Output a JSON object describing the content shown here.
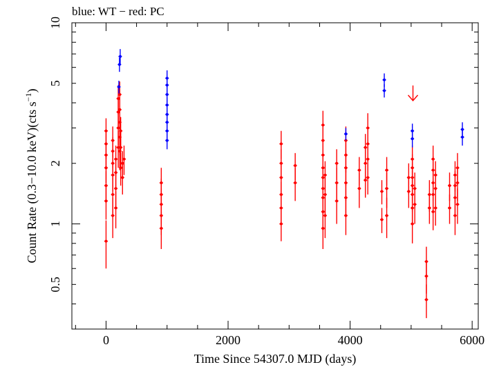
{
  "chart_data": {
    "type": "scatter",
    "title": "blue: WT − red: PC",
    "xlabel": "Time Since 54307.0 MJD (days)",
    "ylabel_main": "Count Rate (0.3−10.0 keV)(cts s",
    "ylabel_sup": "−1",
    "ylabel_close": ")",
    "xlim": [
      -560,
      6100
    ],
    "ylim": [
      0.3,
      10
    ],
    "yscale": "log",
    "grid": false,
    "x_ticks": [
      0,
      2000,
      4000,
      6000
    ],
    "x_tick_labels": [
      "0",
      "2000",
      "4000",
      "6000"
    ],
    "y_ticks": [
      0.5,
      1,
      2,
      5,
      10
    ],
    "y_tick_labels": [
      "0.5",
      "1",
      "2",
      "5",
      "10"
    ],
    "series": [
      {
        "color": "#ff0000",
        "points": [
          [
            0,
            0.82,
            0.22
          ],
          [
            0,
            1.3,
            0.25
          ],
          [
            0,
            1.55,
            0.28
          ],
          [
            0,
            1.9,
            0.3
          ],
          [
            0,
            2.2,
            0.35
          ],
          [
            0,
            2.5,
            0.4
          ],
          [
            0,
            2.9,
            0.45
          ],
          [
            110,
            1.1,
            0.25
          ],
          [
            110,
            1.4,
            0.3
          ],
          [
            110,
            1.75,
            0.3
          ],
          [
            110,
            2.0,
            0.35
          ],
          [
            110,
            2.3,
            0.4
          ],
          [
            110,
            2.6,
            0.45
          ],
          [
            160,
            1.2,
            0.25
          ],
          [
            160,
            1.5,
            0.3
          ],
          [
            160,
            1.8,
            0.3
          ],
          [
            160,
            2.1,
            0.35
          ],
          [
            200,
            2.4,
            0.5
          ],
          [
            200,
            3.0,
            0.55
          ],
          [
            200,
            3.6,
            0.6
          ],
          [
            200,
            4.2,
            0.7
          ],
          [
            225,
            2.3,
            0.45
          ],
          [
            225,
            2.7,
            0.5
          ],
          [
            225,
            3.2,
            0.55
          ],
          [
            225,
            3.7,
            0.6
          ],
          [
            225,
            4.4,
            0.7
          ],
          [
            240,
            1.9,
            0.35
          ],
          [
            240,
            2.4,
            0.45
          ],
          [
            240,
            2.9,
            0.5
          ],
          [
            270,
            1.7,
            0.3
          ],
          [
            270,
            2.0,
            0.3
          ],
          [
            295,
            2.1,
            0.35
          ],
          [
            905,
            0.95,
            0.2
          ],
          [
            905,
            1.1,
            0.22
          ],
          [
            905,
            1.25,
            0.25
          ],
          [
            905,
            1.4,
            0.28
          ],
          [
            905,
            1.6,
            0.3
          ],
          [
            2870,
            1.0,
            0.18
          ],
          [
            2870,
            1.2,
            0.2
          ],
          [
            2870,
            1.4,
            0.22
          ],
          [
            2870,
            1.7,
            0.3
          ],
          [
            2870,
            2.0,
            0.35
          ],
          [
            2870,
            2.5,
            0.4
          ],
          [
            3100,
            1.6,
            0.3
          ],
          [
            3100,
            1.95,
            0.3
          ],
          [
            3555,
            0.95,
            0.2
          ],
          [
            3555,
            1.15,
            0.22
          ],
          [
            3555,
            1.35,
            0.25
          ],
          [
            3555,
            1.5,
            0.28
          ],
          [
            3555,
            1.7,
            0.3
          ],
          [
            3555,
            1.9,
            0.35
          ],
          [
            3555,
            2.2,
            0.4
          ],
          [
            3555,
            2.6,
            0.5
          ],
          [
            3555,
            3.1,
            0.55
          ],
          [
            3590,
            1.1,
            0.25
          ],
          [
            3590,
            1.4,
            0.3
          ],
          [
            3590,
            1.75,
            0.3
          ],
          [
            3780,
            1.3,
            0.3
          ],
          [
            3780,
            1.6,
            0.3
          ],
          [
            3780,
            2.0,
            0.35
          ],
          [
            3930,
            1.1,
            0.22
          ],
          [
            3930,
            1.35,
            0.25
          ],
          [
            3930,
            1.6,
            0.3
          ],
          [
            3930,
            1.9,
            0.35
          ],
          [
            3930,
            2.2,
            0.4
          ],
          [
            3930,
            2.6,
            0.45
          ],
          [
            4150,
            1.5,
            0.3
          ],
          [
            4150,
            1.85,
            0.3
          ],
          [
            4250,
            1.65,
            0.3
          ],
          [
            4250,
            2.0,
            0.35
          ],
          [
            4250,
            2.4,
            0.4
          ],
          [
            4290,
            1.7,
            0.3
          ],
          [
            4290,
            2.1,
            0.35
          ],
          [
            4290,
            2.5,
            0.45
          ],
          [
            4290,
            3.0,
            0.55
          ],
          [
            4520,
            1.05,
            0.15
          ],
          [
            4520,
            1.45,
            0.2
          ],
          [
            4600,
            1.1,
            0.25
          ],
          [
            4600,
            1.5,
            0.3
          ],
          [
            4600,
            1.85,
            0.3
          ],
          [
            4960,
            1.45,
            0.25
          ],
          [
            4960,
            1.7,
            0.3
          ],
          [
            5020,
            1.0,
            0.2
          ],
          [
            5020,
            1.2,
            0.22
          ],
          [
            5020,
            1.4,
            0.25
          ],
          [
            5020,
            1.55,
            0.28
          ],
          [
            5020,
            1.7,
            0.3
          ],
          [
            5020,
            1.9,
            0.32
          ],
          [
            5020,
            2.1,
            0.35
          ],
          [
            5060,
            1.25,
            0.25
          ],
          [
            5060,
            1.5,
            0.3
          ],
          [
            5250,
            0.42,
            0.08
          ],
          [
            5250,
            0.55,
            0.1
          ],
          [
            5250,
            0.65,
            0.12
          ],
          [
            5300,
            1.2,
            0.2
          ],
          [
            5300,
            1.4,
            0.25
          ],
          [
            5360,
            1.15,
            0.22
          ],
          [
            5360,
            1.4,
            0.25
          ],
          [
            5360,
            1.6,
            0.3
          ],
          [
            5360,
            1.85,
            0.32
          ],
          [
            5360,
            2.1,
            0.35
          ],
          [
            5400,
            1.2,
            0.22
          ],
          [
            5400,
            1.5,
            0.3
          ],
          [
            5400,
            1.75,
            0.3
          ],
          [
            5630,
            1.2,
            0.2
          ],
          [
            5630,
            1.55,
            0.25
          ],
          [
            5720,
            1.1,
            0.22
          ],
          [
            5720,
            1.35,
            0.25
          ],
          [
            5720,
            1.55,
            0.28
          ],
          [
            5720,
            1.75,
            0.3
          ],
          [
            5760,
            1.25,
            0.25
          ],
          [
            5760,
            1.6,
            0.3
          ],
          [
            5760,
            1.9,
            0.35
          ]
        ]
      },
      {
        "color": "#0000ff",
        "points": [
          [
            210,
            4.8,
            0.35
          ],
          [
            220,
            6.2,
            0.5
          ],
          [
            232,
            6.8,
            0.6
          ],
          [
            1000,
            2.6,
            0.25
          ],
          [
            1000,
            2.9,
            0.25
          ],
          [
            1000,
            3.2,
            0.3
          ],
          [
            1000,
            3.5,
            0.3
          ],
          [
            1000,
            3.9,
            0.35
          ],
          [
            1000,
            4.4,
            0.4
          ],
          [
            1000,
            4.9,
            0.45
          ],
          [
            1000,
            5.3,
            0.5
          ],
          [
            3930,
            2.8,
            0.2
          ],
          [
            4560,
            4.6,
            0.35
          ],
          [
            4560,
            5.2,
            0.4
          ],
          [
            5020,
            2.65,
            0.25
          ],
          [
            5020,
            2.9,
            0.25
          ],
          [
            5840,
            2.7,
            0.25
          ],
          [
            5840,
            2.95,
            0.25
          ]
        ]
      }
    ],
    "upper_limits": [
      {
        "x": 5030,
        "y": 4.1,
        "color": "#ff0000"
      }
    ]
  }
}
